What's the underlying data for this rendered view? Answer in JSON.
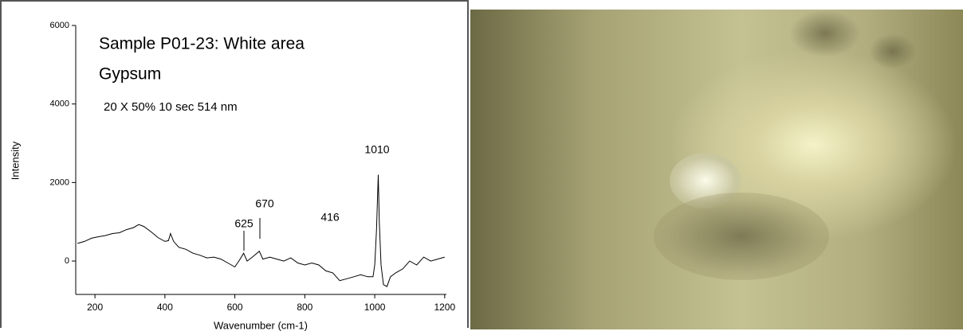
{
  "chart_data": {
    "type": "line",
    "title": "Sample P01-23: White area",
    "subtitle": "Gypsum",
    "note": "20 X 50% 10 sec 514 nm",
    "xlabel": "Wavenumber (cm-1)",
    "ylabel": "Intensity",
    "annotations": [
      "416",
      "625",
      "670",
      "1010"
    ],
    "color": "#000000",
    "xlim": [
      145,
      1205
    ],
    "ylim": [
      -850,
      6000
    ],
    "xticks": [
      200,
      400,
      600,
      800,
      1000,
      1200
    ],
    "yticks": [
      0,
      2000,
      4000,
      6000
    ],
    "x": [
      150,
      170,
      190,
      210,
      230,
      250,
      270,
      290,
      310,
      325,
      340,
      360,
      380,
      400,
      410,
      416,
      425,
      440,
      460,
      480,
      500,
      520,
      540,
      560,
      580,
      600,
      615,
      625,
      635,
      650,
      670,
      680,
      700,
      720,
      740,
      760,
      780,
      800,
      820,
      840,
      860,
      880,
      900,
      920,
      940,
      960,
      980,
      995,
      1000,
      1005,
      1010,
      1013,
      1018,
      1025,
      1035,
      1045,
      1060,
      1080,
      1100,
      1120,
      1140,
      1160,
      1180,
      1200
    ],
    "values": [
      450,
      500,
      580,
      620,
      650,
      700,
      720,
      800,
      850,
      930,
      880,
      750,
      600,
      500,
      520,
      700,
      500,
      350,
      300,
      200,
      150,
      80,
      100,
      50,
      -50,
      -150,
      50,
      200,
      0,
      100,
      250,
      50,
      100,
      50,
      0,
      80,
      -50,
      -100,
      -50,
      -100,
      -250,
      -300,
      -500,
      -450,
      -400,
      -350,
      -400,
      -400,
      -100,
      800,
      2200,
      1000,
      -100,
      -600,
      -650,
      -400,
      -300,
      -200,
      0,
      -100,
      100,
      0,
      50,
      100
    ]
  }
}
